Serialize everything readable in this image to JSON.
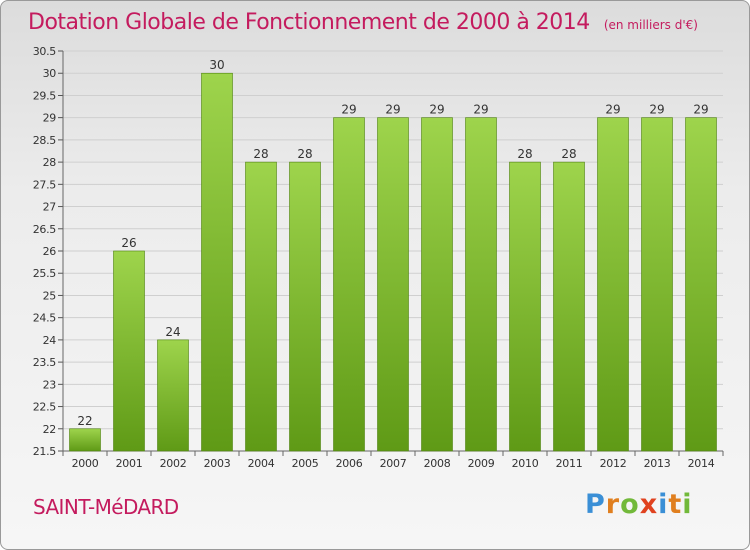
{
  "header": {
    "title": "Dotation Globale de Fonctionnement de 2000 à 2014",
    "unit": "(en milliers d'€)"
  },
  "footer": {
    "commune": "SAINT-MéDARD",
    "brand_letters": [
      "P",
      "r",
      "o",
      "x",
      "i",
      "t",
      "i"
    ],
    "brand_colors": [
      "#3a8fd6",
      "#e07f1f",
      "#72b93a",
      "#e0421f",
      "#3a8fd6",
      "#e07f1f",
      "#72b93a"
    ]
  },
  "chart_data": {
    "type": "bar",
    "categories": [
      "2000",
      "2001",
      "2002",
      "2003",
      "2004",
      "2005",
      "2006",
      "2007",
      "2008",
      "2009",
      "2010",
      "2011",
      "2012",
      "2013",
      "2014"
    ],
    "values": [
      22,
      26,
      24,
      30,
      28,
      28,
      29,
      29,
      29,
      29,
      28,
      28,
      29,
      29,
      29
    ],
    "data_labels": [
      "22",
      "26",
      "24",
      "30",
      "28",
      "28",
      "29",
      "29",
      "29",
      "29",
      "28",
      "28",
      "29",
      "29",
      "29"
    ],
    "y_ticks": [
      "21.5",
      "22",
      "22.5",
      "23",
      "23.5",
      "24",
      "24.5",
      "25",
      "25.5",
      "26",
      "26.5",
      "27",
      "27.5",
      "28",
      "28.5",
      "29",
      "29.5",
      "30",
      "30.5"
    ],
    "ylim": [
      21.5,
      30.5
    ],
    "grid": true,
    "legend": "none",
    "colors": {
      "bar_top": "#9ed44c",
      "bar_bottom": "#5f9a16",
      "bar_edge": "#4f8210",
      "grid": "#cfcfcf",
      "axis_text": "#333333"
    }
  }
}
